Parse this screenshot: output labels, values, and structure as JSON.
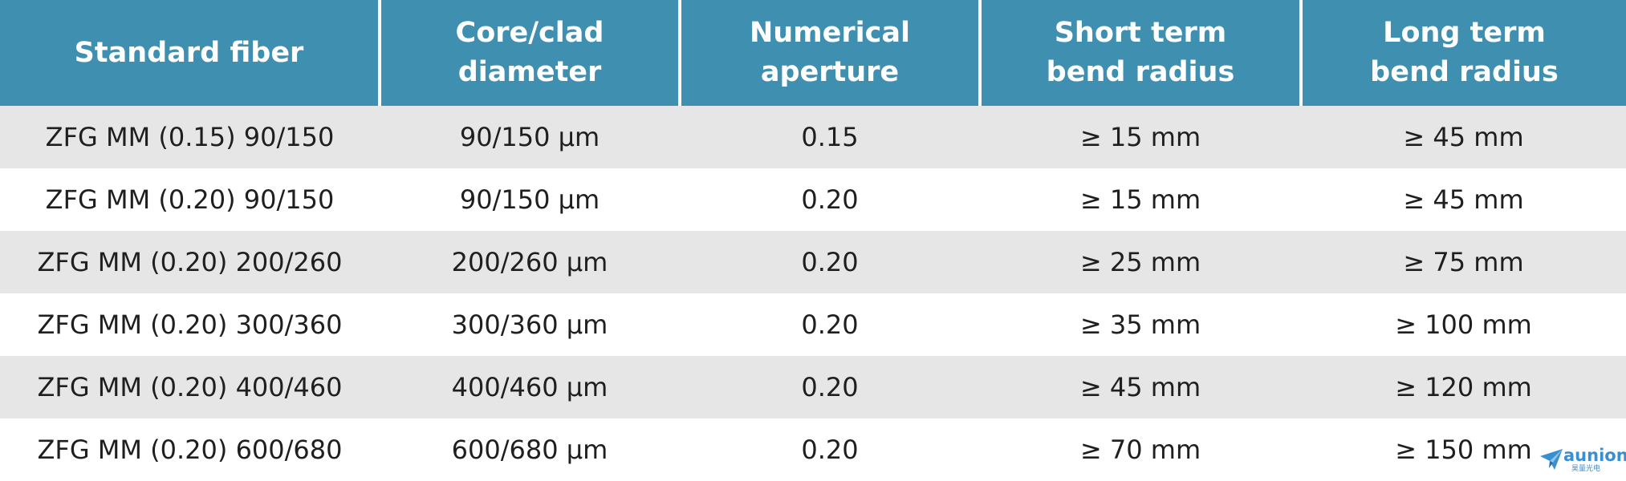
{
  "table": {
    "headers": [
      "Standard fiber",
      "Core/clad\ndiameter",
      "Numerical\naperture",
      "Short term\nbend radius",
      "Long term\nbend radius"
    ],
    "rows": [
      [
        "ZFG MM (0.15) 90/150",
        "90/150 µm",
        "0.15",
        "≥ 15 mm",
        "≥ 45 mm"
      ],
      [
        "ZFG MM (0.20) 90/150",
        "90/150 µm",
        "0.20",
        "≥ 15 mm",
        "≥ 45 mm"
      ],
      [
        "ZFG MM (0.20) 200/260",
        "200/260 µm",
        "0.20",
        "≥ 25 mm",
        "≥ 75 mm"
      ],
      [
        "ZFG MM (0.20) 300/360",
        "300/360 µm",
        "0.20",
        "≥ 35 mm",
        "≥ 100 mm"
      ],
      [
        "ZFG MM (0.20) 400/460",
        "400/460 µm",
        "0.20",
        "≥ 45 mm",
        "≥ 120 mm"
      ],
      [
        "ZFG MM (0.20) 600/680",
        "600/680 µm",
        "0.20",
        "≥ 70 mm",
        "≥ 150 mm"
      ]
    ]
  },
  "logo": {
    "name": "aunion",
    "subtitle": "昊量光电",
    "icon": "paper-plane-icon"
  },
  "colors": {
    "header_background": "#3f8fb0",
    "header_text": "#ffffff",
    "row_stripe": "#e6e6e6",
    "row_plain": "#ffffff",
    "body_text": "#1f1f1f",
    "logo": "#3a8fd0"
  }
}
